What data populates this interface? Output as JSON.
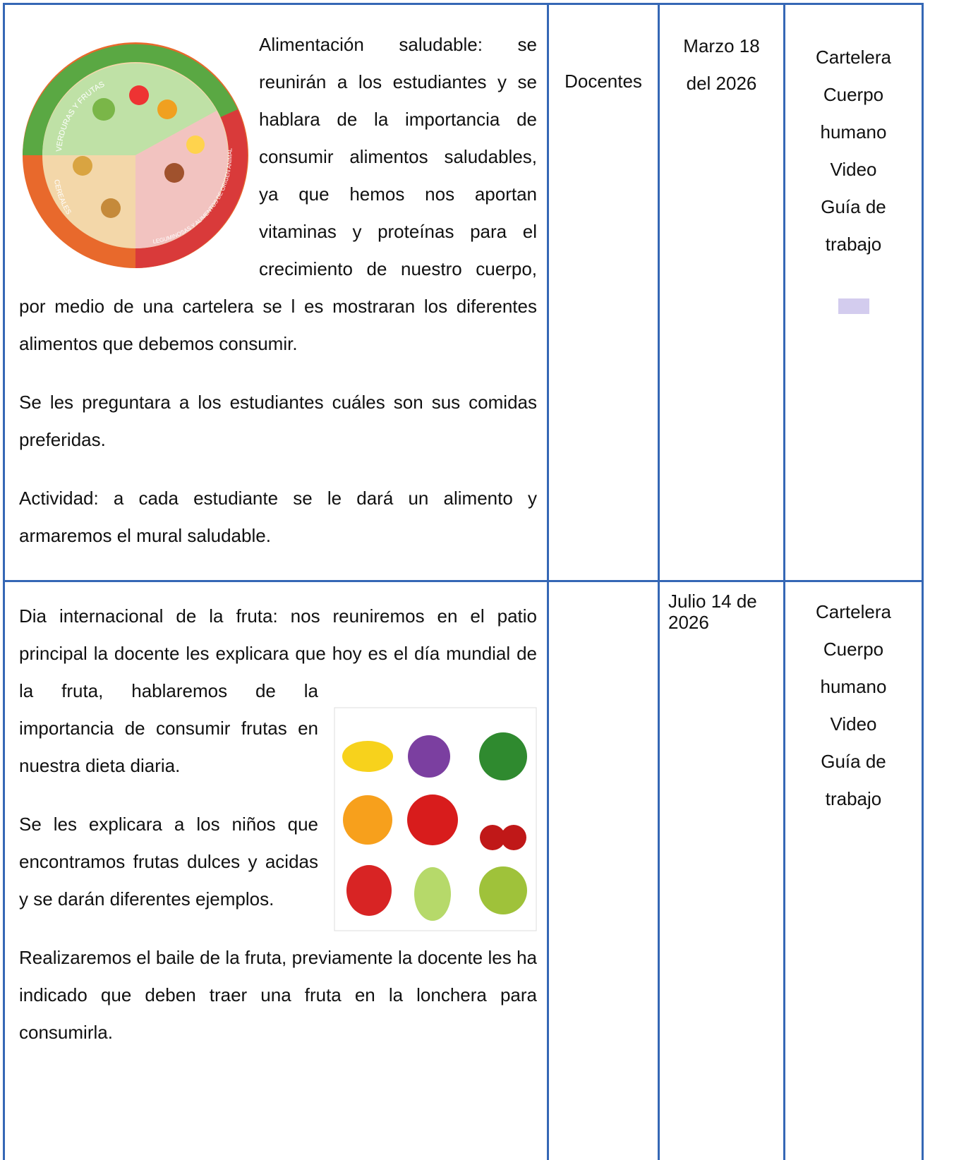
{
  "rows": [
    {
      "activity": {
        "image_labels": [
          "VERDURAS Y FRUTAS",
          "CEREALES",
          "LEGUMINOSAS Y ALIMENTOS DE ORIGEN ANIMAL"
        ],
        "paragraphs": [
          "Alimentación saludable: se reunirán a los estudiantes y se hablara de la importancia de consumir alimentos saludables, ya que hemos nos aportan vitaminas y proteínas para el crecimiento de nuestro cuerpo, por medio de una cartelera se l es mostraran los diferentes alimentos que debemos consumir.",
          "Se les preguntara a los estudiantes cuáles son sus comidas preferidas.",
          "Actividad: a cada estudiante se le dará un alimento y armaremos el mural saludable."
        ]
      },
      "responsible": "Docentes",
      "date": "Marzo 18 del 2026",
      "resources": [
        "Cartelera",
        "Cuerpo humano",
        "Video",
        "Guía de trabajo"
      ]
    },
    {
      "activity": {
        "paragraphs": [
          "Dia internacional de la fruta: nos reuniremos en el patio principal la docente les explicara que hoy es el día mundial de la fruta, hablaremos de la importancia de consumir frutas en nuestra dieta diaria.",
          "Se les explicara a los niños que encontramos frutas dulces y acidas y se darán diferentes ejemplos.",
          "Realizaremos el baile de la fruta, previamente la docente les ha indicado que deben traer una fruta en la lonchera para consumirla."
        ]
      },
      "date": "Julio 14 de 2026",
      "resources": [
        "Cartelera",
        "Cuerpo humano",
        "Video",
        "Guía de trabajo"
      ]
    }
  ]
}
